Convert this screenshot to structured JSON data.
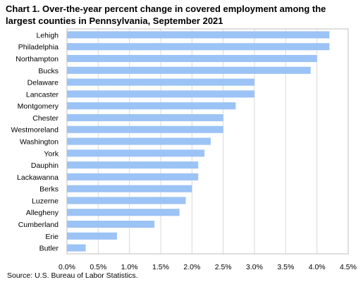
{
  "chart_data": {
    "type": "bar",
    "orientation": "horizontal",
    "title": "Chart 1. Over-the-year percent change in covered employment among the largest counties in Pennsylvania, September 2021",
    "categories": [
      "Lehigh",
      "Philadelphia",
      "Northampton",
      "Bucks",
      "Delaware",
      "Lancaster",
      "Montgomery",
      "Chester",
      "Westmoreland",
      "Washington",
      "York",
      "Dauphin",
      "Lackawanna",
      "Berks",
      "Luzerne",
      "Allegheny",
      "Cumberland",
      "Erie",
      "Butler"
    ],
    "values": [
      4.2,
      4.2,
      4.0,
      3.9,
      3.0,
      3.0,
      2.7,
      2.5,
      2.5,
      2.3,
      2.2,
      2.1,
      2.1,
      2.0,
      1.9,
      1.8,
      1.4,
      0.8,
      0.3
    ],
    "xlim": [
      0,
      4.5
    ],
    "xticks": [
      "0.0%",
      "0.5%",
      "1.0%",
      "1.5%",
      "2.0%",
      "2.5%",
      "3.0%",
      "3.5%",
      "4.0%",
      "4.5%"
    ],
    "grid": "vertical",
    "bar_color": "#9cc3f5",
    "grid_color": "#d9d9d9",
    "source": "Source: U.S. Bureau of Labor Statistics."
  }
}
